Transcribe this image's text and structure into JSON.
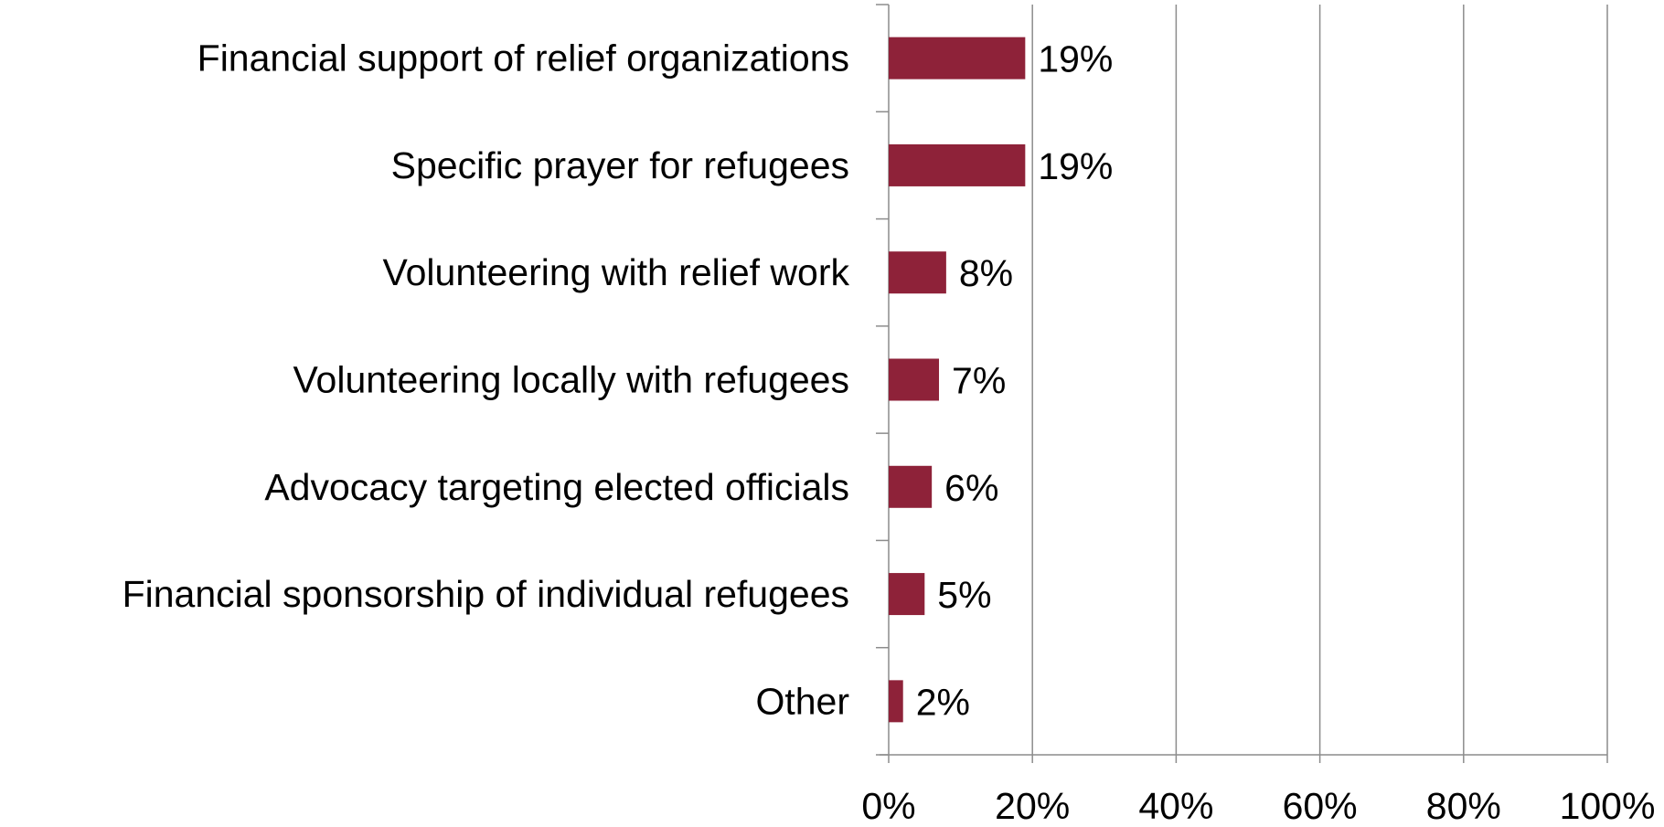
{
  "chart_data": {
    "type": "bar",
    "orientation": "horizontal",
    "categories": [
      "Financial support of relief organizations",
      "Specific prayer for refugees",
      "Volunteering with relief work",
      "Volunteering locally with refugees",
      "Advocacy targeting elected officials",
      "Financial sponsorship of individual refugees",
      "Other"
    ],
    "values": [
      19,
      19,
      8,
      7,
      6,
      5,
      2
    ],
    "value_labels": [
      "19%",
      "19%",
      "8%",
      "7%",
      "6%",
      "5%",
      "2%"
    ],
    "title": "",
    "xlabel": "",
    "ylabel": "",
    "xlim": [
      0,
      100
    ],
    "x_ticks": [
      0,
      20,
      40,
      60,
      80,
      100
    ],
    "x_tick_labels": [
      "0%",
      "20%",
      "40%",
      "60%",
      "80%",
      "100%"
    ],
    "grid": "vertical",
    "legend": "none",
    "bar_color": "#8e2239",
    "grid_color": "#8c8c8c"
  }
}
